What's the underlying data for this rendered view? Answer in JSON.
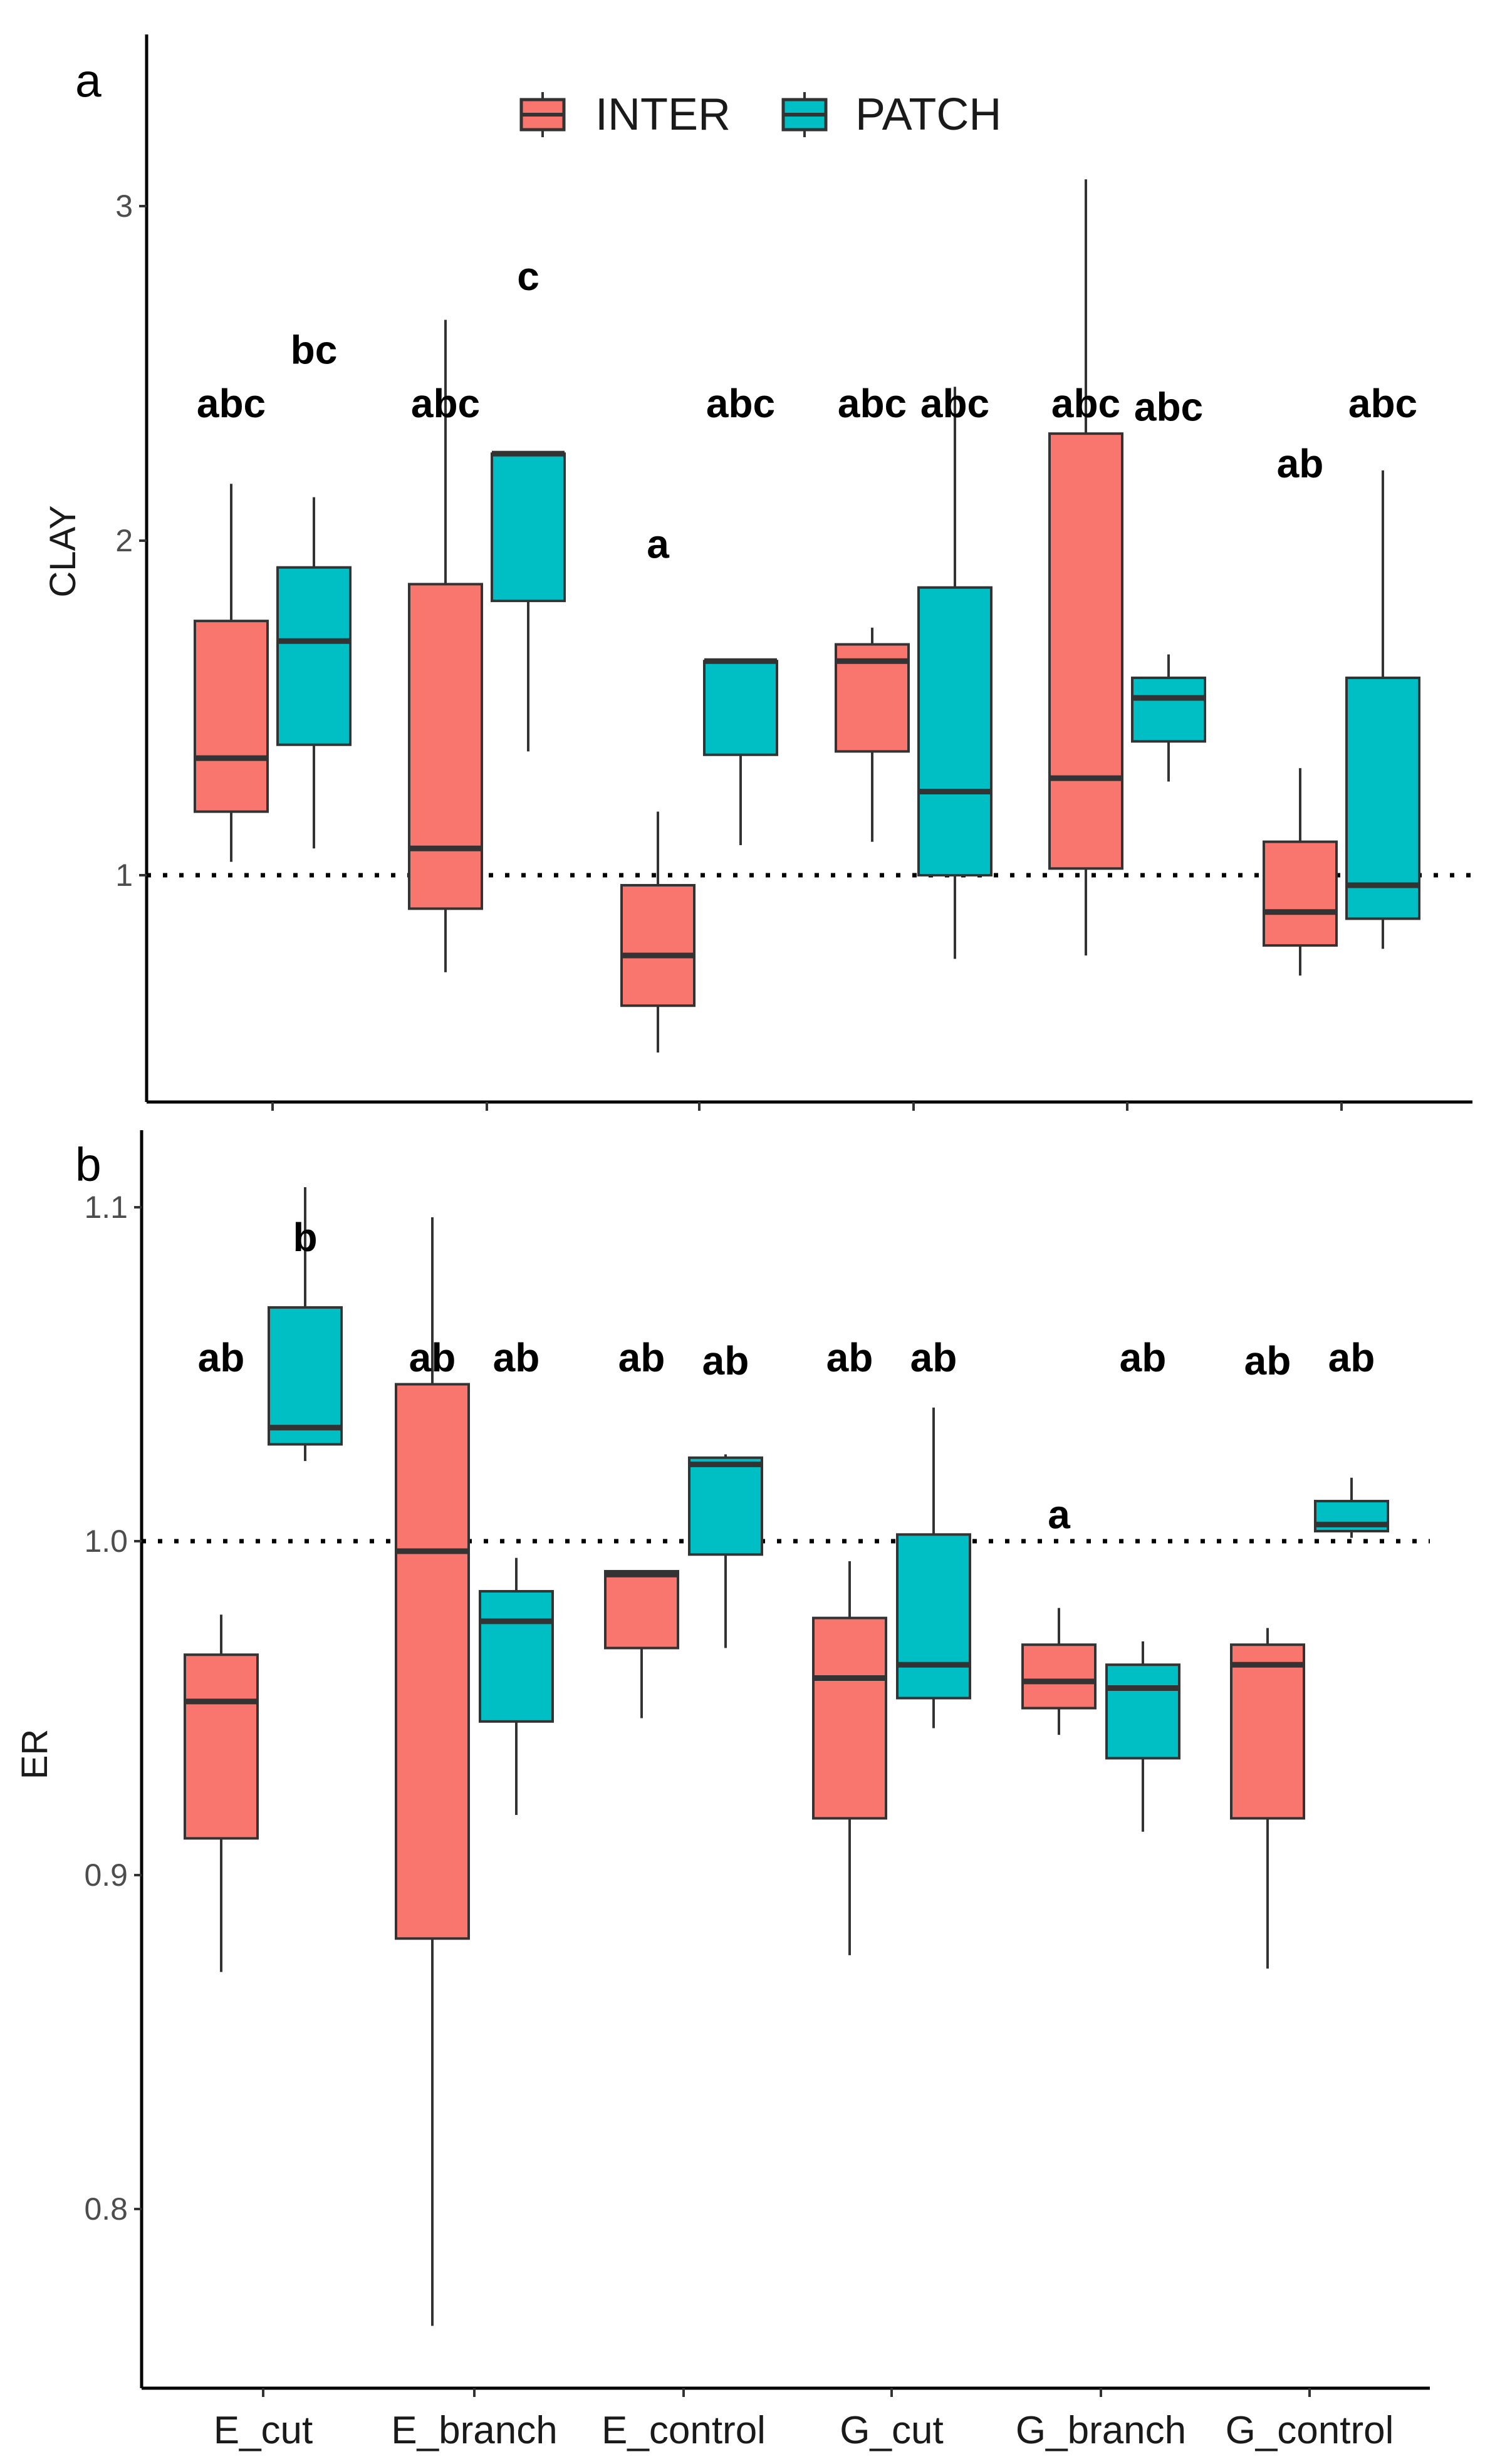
{
  "chart_data": [
    {
      "type": "boxplot",
      "panel_label": "a",
      "ylabel": "CLAY",
      "ylim": [
        0.33,
        3.5
      ],
      "yticks": [
        1,
        2,
        3
      ],
      "reference_line": 1,
      "categories": [
        "E_cut",
        "E_branch",
        "E_control",
        "G_cut",
        "G_branch",
        "G_control"
      ],
      "legend": {
        "position": "top",
        "entries": [
          "INTER",
          "PATCH"
        ]
      },
      "series": [
        {
          "name": "INTER",
          "color": "#F8766D",
          "boxes": [
            {
              "min": 1.04,
              "q1": 1.19,
              "median": 1.35,
              "q3": 1.76,
              "max": 2.17,
              "letter": "abc",
              "letter_y": 2.41
            },
            {
              "min": 0.71,
              "q1": 0.9,
              "median": 1.08,
              "q3": 1.87,
              "max": 2.66,
              "letter": "abc",
              "letter_y": 2.41
            },
            {
              "min": 0.47,
              "q1": 0.61,
              "median": 0.76,
              "q3": 0.97,
              "max": 1.19,
              "letter": "a",
              "letter_y": 1.99
            },
            {
              "min": 1.1,
              "q1": 1.37,
              "median": 1.64,
              "q3": 1.69,
              "max": 1.74,
              "letter": "abc",
              "letter_y": 2.41
            },
            {
              "min": 0.76,
              "q1": 1.02,
              "median": 1.29,
              "q3": 2.32,
              "max": 3.08,
              "letter": "abc",
              "letter_y": 2.41
            },
            {
              "min": 0.7,
              "q1": 0.79,
              "median": 0.89,
              "q3": 1.1,
              "max": 1.32,
              "letter": "ab",
              "letter_y": 2.23
            }
          ]
        },
        {
          "name": "PATCH",
          "color": "#00BFC4",
          "boxes": [
            {
              "min": 1.08,
              "q1": 1.39,
              "median": 1.7,
              "q3": 1.92,
              "max": 2.13,
              "letter": "bc",
              "letter_y": 2.57
            },
            {
              "min": 1.37,
              "q1": 1.82,
              "median": 2.26,
              "q3": 2.26,
              "max": 2.26,
              "letter": "c",
              "letter_y": 2.79
            },
            {
              "min": 1.09,
              "q1": 1.36,
              "median": 1.64,
              "q3": 1.64,
              "max": 1.64,
              "letter": "abc",
              "letter_y": 2.41
            },
            {
              "min": 0.75,
              "q1": 1.0,
              "median": 1.25,
              "q3": 1.86,
              "max": 2.46,
              "letter": "abc",
              "letter_y": 2.41
            },
            {
              "min": 1.28,
              "q1": 1.4,
              "median": 1.53,
              "q3": 1.59,
              "max": 1.66,
              "letter": "abc",
              "letter_y": 2.4
            },
            {
              "min": 0.78,
              "q1": 0.87,
              "median": 0.97,
              "q3": 1.59,
              "max": 2.21,
              "letter": "abc",
              "letter_y": 2.41
            }
          ]
        }
      ]
    },
    {
      "type": "boxplot",
      "panel_label": "b",
      "ylabel": "ER",
      "ylim": [
        0.744,
        1.123
      ],
      "yticks": [
        "0.8",
        "0.9",
        "1.0",
        "1.1"
      ],
      "reference_line": 1.0,
      "categories": [
        "E_cut",
        "E_branch",
        "E_control",
        "G_cut",
        "G_branch",
        "G_control"
      ],
      "series": [
        {
          "name": "INTER",
          "color": "#F8766D",
          "boxes": [
            {
              "min": 0.871,
              "q1": 0.911,
              "median": 0.952,
              "q3": 0.966,
              "max": 0.978,
              "letter": "ab",
              "letter_y": 1.055
            },
            {
              "min": 0.765,
              "q1": 0.881,
              "median": 0.997,
              "q3": 1.047,
              "max": 1.097,
              "letter": "ab",
              "letter_y": 1.055
            },
            {
              "min": 0.947,
              "q1": 0.968,
              "median": 0.99,
              "q3": 0.991,
              "max": 0.991,
              "letter": "ab",
              "letter_y": 1.055
            },
            {
              "min": 0.876,
              "q1": 0.917,
              "median": 0.959,
              "q3": 0.977,
              "max": 0.994,
              "letter": "ab",
              "letter_y": 1.055
            },
            {
              "min": 0.942,
              "q1": 0.95,
              "median": 0.958,
              "q3": 0.969,
              "max": 0.98,
              "letter": "a",
              "letter_y": 1.008
            },
            {
              "min": 0.872,
              "q1": 0.917,
              "median": 0.963,
              "q3": 0.969,
              "max": 0.974,
              "letter": "ab",
              "letter_y": 1.054
            }
          ]
        },
        {
          "name": "PATCH",
          "color": "#00BFC4",
          "boxes": [
            {
              "min": 1.024,
              "q1": 1.029,
              "median": 1.034,
              "q3": 1.07,
              "max": 1.106,
              "letter": "b",
              "letter_y": 1.091
            },
            {
              "min": 0.918,
              "q1": 0.946,
              "median": 0.976,
              "q3": 0.985,
              "max": 0.995,
              "letter": "ab",
              "letter_y": 1.055
            },
            {
              "min": 0.968,
              "q1": 0.996,
              "median": 1.023,
              "q3": 1.025,
              "max": 1.026,
              "letter": "ab",
              "letter_y": 1.054
            },
            {
              "min": 0.944,
              "q1": 0.953,
              "median": 0.963,
              "q3": 1.002,
              "max": 1.04,
              "letter": "ab",
              "letter_y": 1.055
            },
            {
              "min": 0.913,
              "q1": 0.935,
              "median": 0.956,
              "q3": 0.963,
              "max": 0.97,
              "letter": "ab",
              "letter_y": 1.055
            },
            {
              "min": 1.001,
              "q1": 1.003,
              "median": 1.005,
              "q3": 1.012,
              "max": 1.019,
              "letter": "ab",
              "letter_y": 1.055
            }
          ]
        }
      ]
    }
  ]
}
